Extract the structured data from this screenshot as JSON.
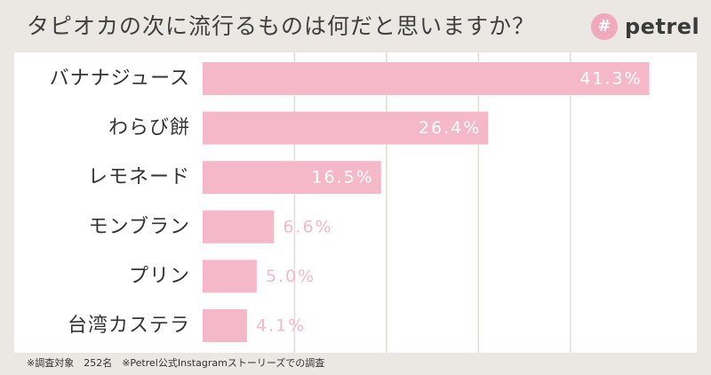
{
  "header": {
    "title": "タピオカの次に流行るものは何だと思いますか？",
    "brand_mark": "#",
    "brand_name": "petrel"
  },
  "colors": {
    "background": "#ebe7e2",
    "panel": "#ffffff",
    "bar": "#f5b8c9",
    "grid": "#e2dcd7",
    "label": "#333333",
    "value_inside": "#ffffff",
    "value_outside": "#f5b8c9"
  },
  "chart_data": {
    "type": "bar",
    "orientation": "horizontal",
    "title": "タピオカの次に流行るものは何だと思いますか？",
    "categories": [
      "バナナジュース",
      "わらび餅",
      "レモネード",
      "モンブラン",
      "プリン",
      "台湾カステラ"
    ],
    "values": [
      41.3,
      26.4,
      16.5,
      6.6,
      5.0,
      4.1
    ],
    "value_labels": [
      "41.3%",
      "26.4%",
      "16.5%",
      "6.6%",
      "5.0%",
      "4.1%"
    ],
    "xlabel": "",
    "ylabel": "",
    "xlim": [
      0,
      42
    ],
    "grid": true,
    "legend": "none"
  },
  "footnote": "※調査対象　252名　※Petrel公式Instagramストーリーズでの調査"
}
